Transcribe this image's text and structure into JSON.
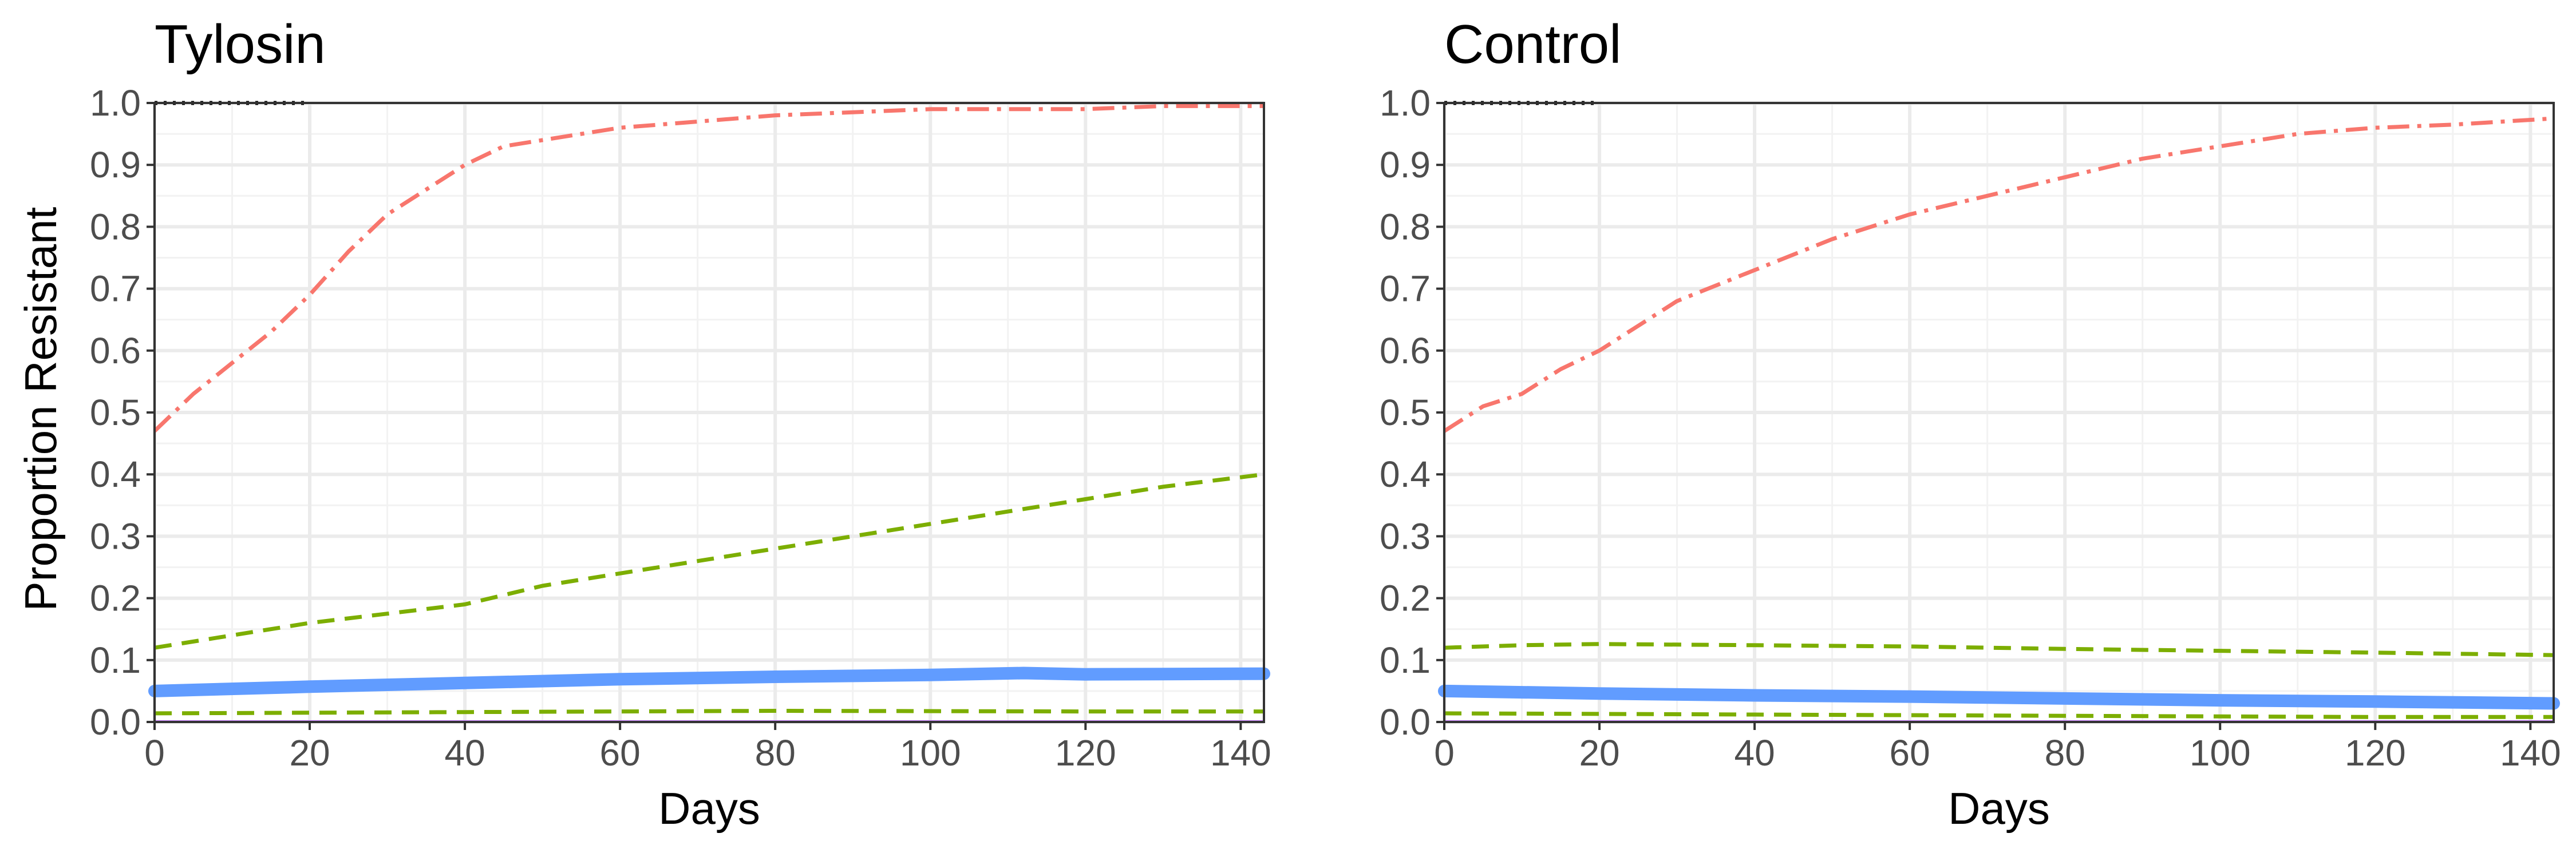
{
  "figure": {
    "y_axis_title": "Proportion Resistant"
  },
  "chart_data": [
    {
      "type": "line",
      "title": "Tylosin",
      "xlabel": "Days",
      "ylabel": "Proportion Resistant",
      "xlim": [
        0,
        143
      ],
      "ylim": [
        0,
        1
      ],
      "xticks": [
        0,
        20,
        40,
        60,
        80,
        100,
        120,
        140
      ],
      "yticks": [
        0.0,
        0.1,
        0.2,
        0.3,
        0.4,
        0.5,
        0.6,
        0.7,
        0.8,
        0.9,
        1.0
      ],
      "grid": true,
      "legend": "none",
      "series": [
        {
          "color": "#f8766d",
          "linestyle": "dashdot",
          "x": [
            0,
            5,
            10,
            15,
            20,
            25,
            30,
            35,
            40,
            45,
            50,
            60,
            70,
            80,
            90,
            100,
            110,
            120,
            130,
            143
          ],
          "y": [
            0.47,
            0.53,
            0.58,
            0.63,
            0.69,
            0.76,
            0.82,
            0.86,
            0.9,
            0.93,
            0.94,
            0.96,
            0.97,
            0.98,
            0.985,
            0.99,
            0.99,
            0.99,
            0.995,
            0.995
          ]
        },
        {
          "color": "#7cae00",
          "linestyle": "dashed",
          "x": [
            0,
            10,
            20,
            30,
            40,
            50,
            60,
            70,
            80,
            90,
            100,
            110,
            120,
            130,
            143
          ],
          "y": [
            0.12,
            0.14,
            0.16,
            0.175,
            0.19,
            0.22,
            0.24,
            0.26,
            0.28,
            0.3,
            0.32,
            0.34,
            0.36,
            0.38,
            0.4
          ]
        },
        {
          "color": "#619cff",
          "linestyle": "solid-thick",
          "x": [
            0,
            20,
            40,
            60,
            80,
            100,
            112,
            120,
            143
          ],
          "y": [
            0.05,
            0.057,
            0.063,
            0.069,
            0.073,
            0.076,
            0.079,
            0.077,
            0.078
          ]
        },
        {
          "color": "#7cae00",
          "linestyle": "dashed",
          "x": [
            0,
            40,
            80,
            120,
            143
          ],
          "y": [
            0.014,
            0.016,
            0.018,
            0.017,
            0.017
          ]
        },
        {
          "color": "#c77cff",
          "linestyle": "solid",
          "x": [
            0,
            143
          ],
          "y": [
            0.001,
            0.001
          ]
        },
        {
          "color": "#000000",
          "linestyle": "dotted",
          "x": [
            0,
            20
          ],
          "y": [
            1.0,
            1.0
          ]
        }
      ]
    },
    {
      "type": "line",
      "title": "Control",
      "xlabel": "Days",
      "ylabel": "",
      "xlim": [
        0,
        143
      ],
      "ylim": [
        0,
        1
      ],
      "xticks": [
        0,
        20,
        40,
        60,
        80,
        100,
        120,
        140
      ],
      "yticks": [
        0.0,
        0.1,
        0.2,
        0.3,
        0.4,
        0.5,
        0.6,
        0.7,
        0.8,
        0.9,
        1.0
      ],
      "grid": true,
      "legend": "none",
      "series": [
        {
          "color": "#f8766d",
          "linestyle": "dashdot",
          "x": [
            0,
            5,
            10,
            15,
            20,
            30,
            40,
            50,
            60,
            70,
            80,
            90,
            100,
            110,
            120,
            130,
            143
          ],
          "y": [
            0.47,
            0.51,
            0.53,
            0.57,
            0.6,
            0.68,
            0.73,
            0.78,
            0.82,
            0.85,
            0.88,
            0.91,
            0.93,
            0.95,
            0.96,
            0.965,
            0.975
          ]
        },
        {
          "color": "#7cae00",
          "linestyle": "dashed",
          "x": [
            0,
            10,
            20,
            40,
            60,
            80,
            100,
            120,
            143
          ],
          "y": [
            0.12,
            0.124,
            0.126,
            0.124,
            0.122,
            0.118,
            0.115,
            0.112,
            0.108
          ]
        },
        {
          "color": "#619cff",
          "linestyle": "solid-thick",
          "x": [
            0,
            20,
            40,
            60,
            80,
            100,
            120,
            143
          ],
          "y": [
            0.05,
            0.046,
            0.043,
            0.041,
            0.038,
            0.035,
            0.033,
            0.03
          ]
        },
        {
          "color": "#7cae00",
          "linestyle": "dashed",
          "x": [
            0,
            20,
            40,
            60,
            80,
            100,
            120,
            143
          ],
          "y": [
            0.014,
            0.013,
            0.012,
            0.011,
            0.01,
            0.009,
            0.008,
            0.008
          ]
        },
        {
          "color": "#c77cff",
          "linestyle": "solid",
          "x": [
            0,
            143
          ],
          "y": [
            0.001,
            0.001
          ]
        },
        {
          "color": "#000000",
          "linestyle": "dotted",
          "x": [
            0,
            20
          ],
          "y": [
            1.0,
            1.0
          ]
        }
      ]
    }
  ]
}
